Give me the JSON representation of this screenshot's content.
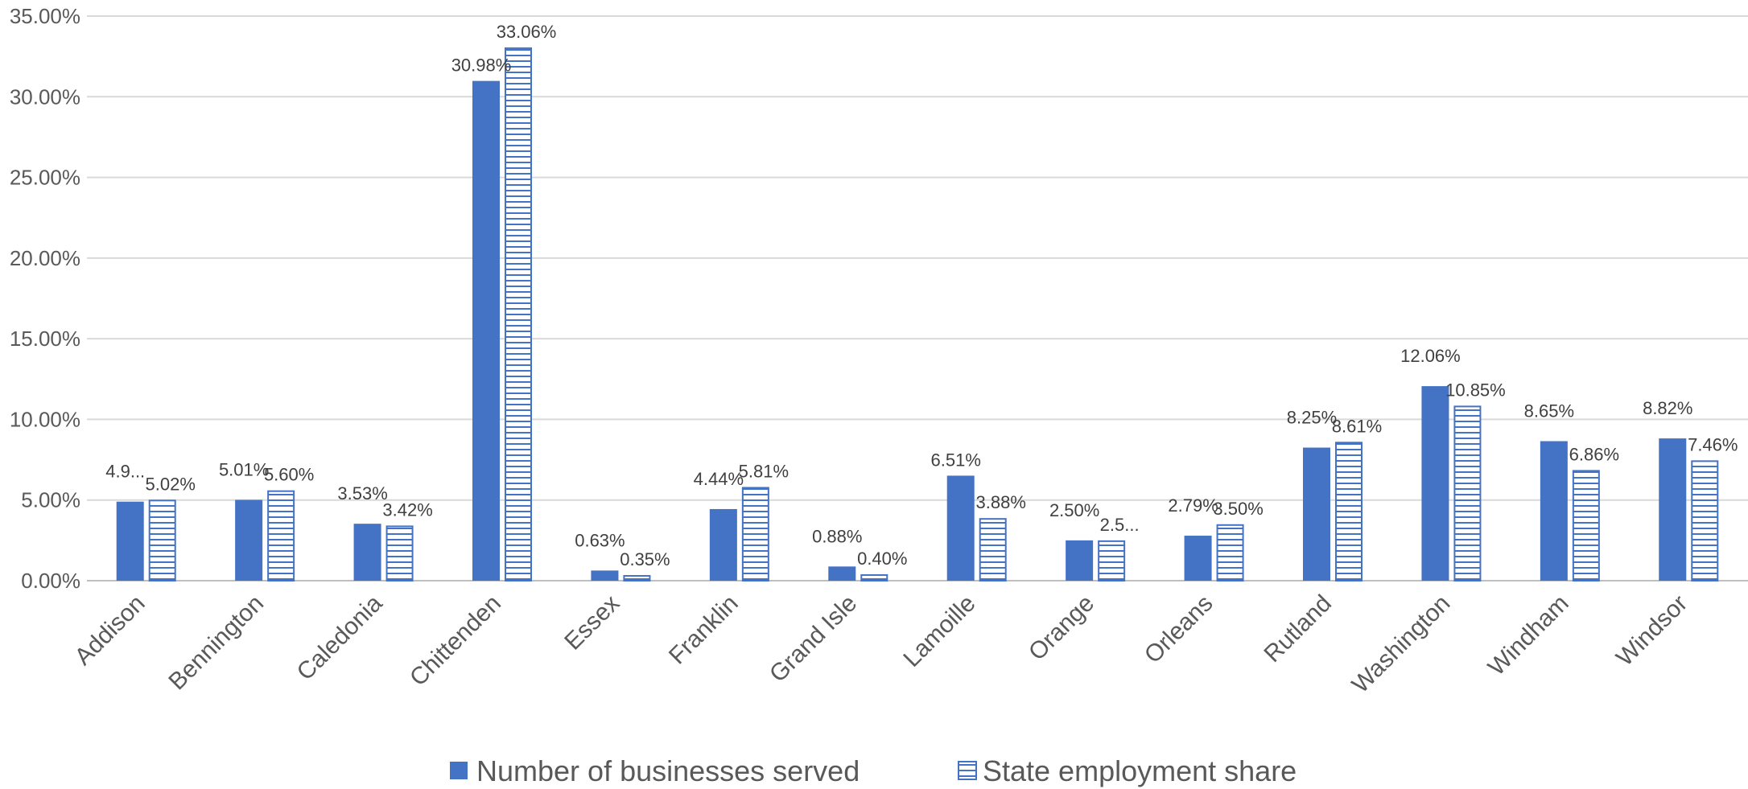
{
  "chart_data": {
    "type": "bar",
    "categories": [
      "Addison",
      "Bennington",
      "Caledonia",
      "Chittenden",
      "Essex",
      "Franklin",
      "Grand Isle",
      "Lamoille",
      "Orange",
      "Orleans",
      "Rutland",
      "Washington",
      "Windham",
      "Windsor"
    ],
    "series": [
      {
        "name": "Number of businesses served",
        "values": [
          4.9,
          5.01,
          3.53,
          30.98,
          0.63,
          4.44,
          0.88,
          6.51,
          2.5,
          2.79,
          8.25,
          12.06,
          8.65,
          8.82
        ],
        "labels": [
          "4.9...",
          "5.01%",
          "3.53%",
          "30.98%",
          "0.63%",
          "4.44%",
          "0.88%",
          "6.51%",
          "2.50%",
          "2.79%",
          "8.25%",
          "12.06%",
          "8.65%",
          "8.82%"
        ],
        "color": "#4472c4",
        "pattern": "solid"
      },
      {
        "name": "State employment share",
        "values": [
          5.02,
          5.6,
          3.42,
          33.06,
          0.35,
          5.81,
          0.4,
          3.88,
          2.5,
          3.5,
          8.61,
          10.85,
          6.86,
          7.46
        ],
        "labels": [
          "5.02%",
          "5.60%",
          "3.42%",
          "33.06%",
          "0.35%",
          "5.81%",
          "0.40%",
          "3.88%",
          "2.5...",
          "3.50%",
          "8.61%",
          "10.85%",
          "6.86%",
          "7.46%"
        ],
        "color": "#4472c4",
        "pattern": "horizontal-stripes"
      }
    ],
    "y_ticks": [
      "0.00%",
      "5.00%",
      "10.00%",
      "15.00%",
      "20.00%",
      "25.00%",
      "30.00%",
      "35.00%"
    ],
    "ylim": [
      0,
      35
    ],
    "title": "",
    "xlabel": "",
    "ylabel": "",
    "grid": true,
    "legend_position": "bottom"
  }
}
